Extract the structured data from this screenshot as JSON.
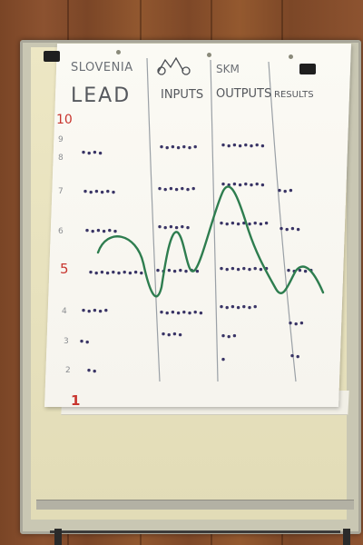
{
  "flipchart": {
    "header_left": "SLOVENIA",
    "header_right": "SKM",
    "columns": [
      "LEAD",
      "INPUTS",
      "OUTPUTS",
      "RESULTS"
    ],
    "scale_labels": [
      "10",
      "9",
      "8",
      "7",
      "6",
      "5",
      "4",
      "3",
      "2",
      "1"
    ]
  },
  "colors": {
    "curve": "#2e7d4f",
    "dots": "#3a3566",
    "scale_accent": "#c8352e",
    "marker_text": "#6b6f75"
  },
  "icons": [
    "mountain-logo-icon"
  ]
}
